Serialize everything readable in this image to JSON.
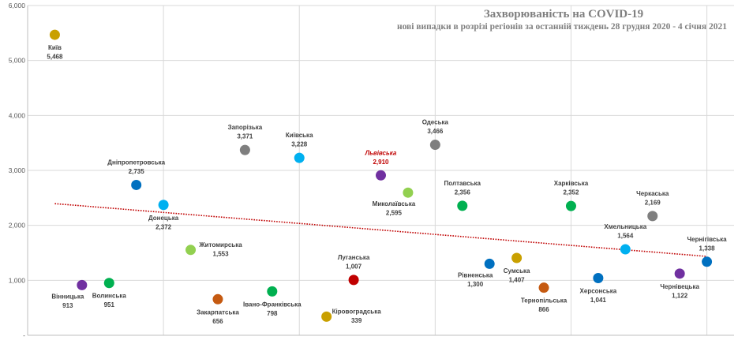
{
  "chart_data": {
    "type": "scatter",
    "title": "Захворюваність на COVID-19",
    "subtitle": "нові випадки в розрізі регіонів за останній тиждень 28 грудня 2020 - 4 січня 2021",
    "xlabel": "",
    "ylabel": "",
    "ylim": [
      0,
      6000
    ],
    "xlim": [
      0,
      26
    ],
    "y_ticks": [
      "-",
      "1,000",
      "2,000",
      "3,000",
      "4,000",
      "5,000",
      "6,000"
    ],
    "y_tick_values": [
      0,
      1000,
      2000,
      3000,
      4000,
      5000,
      6000
    ],
    "grid": true,
    "trendline": {
      "type": "linear",
      "color": "#c00000",
      "style": "dotted"
    },
    "highlight_color": "#c00000",
    "points": [
      {
        "x": 1,
        "name": "Київ",
        "value": 5468,
        "label": "5,468",
        "color": "#c9a000",
        "label_pos": "below"
      },
      {
        "x": 2,
        "name": "Вінницька",
        "value": 913,
        "label": "913",
        "color": "#7030a0",
        "label_pos": "below-left"
      },
      {
        "x": 3,
        "name": "Волинська",
        "value": 951,
        "label": "951",
        "color": "#00b050",
        "label_pos": "below"
      },
      {
        "x": 4,
        "name": "Дніпропетровська",
        "value": 2735,
        "label": "2,735",
        "color": "#0070c0",
        "label_pos": "above"
      },
      {
        "x": 5,
        "name": "Донецька",
        "value": 2372,
        "label": "2,372",
        "color": "#00b0f0",
        "label_pos": "below"
      },
      {
        "x": 6,
        "name": "Житомирська",
        "value": 1553,
        "label": "1,553",
        "color": "#92d050",
        "label_pos": "right"
      },
      {
        "x": 7,
        "name": "Закарпатська",
        "value": 656,
        "label": "656",
        "color": "#c55a11",
        "label_pos": "below"
      },
      {
        "x": 8,
        "name": "Запорізька",
        "value": 3371,
        "label": "3,371",
        "color": "#7f7f7f",
        "label_pos": "above"
      },
      {
        "x": 9,
        "name": "Івано-Франківська",
        "value": 798,
        "label": "798",
        "color": "#00b050",
        "label_pos": "below"
      },
      {
        "x": 10,
        "name": "Київська",
        "value": 3228,
        "label": "3,228",
        "color": "#00b0f0",
        "label_pos": "above"
      },
      {
        "x": 11,
        "name": "Кіровоградська",
        "value": 339,
        "label": "339",
        "color": "#c9a000",
        "label_pos": "right"
      },
      {
        "x": 12,
        "name": "Луганська",
        "value": 1007,
        "label": "1,007",
        "color": "#c00000",
        "label_pos": "above"
      },
      {
        "x": 13,
        "name": "Львівська",
        "value": 2910,
        "label": "2,910",
        "color": "#7030a0",
        "label_pos": "above",
        "highlight": true
      },
      {
        "x": 14,
        "name": "Миколаївська",
        "value": 2595,
        "label": "2,595",
        "color": "#92d050",
        "label_pos": "below-left"
      },
      {
        "x": 15,
        "name": "Одеська",
        "value": 3466,
        "label": "3,466",
        "color": "#7f7f7f",
        "label_pos": "above"
      },
      {
        "x": 16,
        "name": "Полтавська",
        "value": 2356,
        "label": "2,356",
        "color": "#00b050",
        "label_pos": "above"
      },
      {
        "x": 17,
        "name": "Рівненська",
        "value": 1300,
        "label": "1,300",
        "color": "#0070c0",
        "label_pos": "below-left"
      },
      {
        "x": 18,
        "name": "Сумська",
        "value": 1407,
        "label": "1,407",
        "color": "#c9a000",
        "label_pos": "below"
      },
      {
        "x": 19,
        "name": "Тернопільська",
        "value": 866,
        "label": "866",
        "color": "#c55a11",
        "label_pos": "below"
      },
      {
        "x": 20,
        "name": "Харківська",
        "value": 2352,
        "label": "2,352",
        "color": "#00b050",
        "label_pos": "above"
      },
      {
        "x": 21,
        "name": "Херсонська",
        "value": 1041,
        "label": "1,041",
        "color": "#0070c0",
        "label_pos": "below"
      },
      {
        "x": 22,
        "name": "Хмельницька",
        "value": 1564,
        "label": "1,564",
        "color": "#00b0f0",
        "label_pos": "above"
      },
      {
        "x": 23,
        "name": "Черкаська",
        "value": 2169,
        "label": "2,169",
        "color": "#7f7f7f",
        "label_pos": "above"
      },
      {
        "x": 24,
        "name": "Чернівецька",
        "value": 1122,
        "label": "1,122",
        "color": "#7030a0",
        "label_pos": "below"
      },
      {
        "x": 25,
        "name": "Чернігівська",
        "value": 1338,
        "label": "1,338",
        "color": "#0070c0",
        "label_pos": "above"
      }
    ]
  }
}
